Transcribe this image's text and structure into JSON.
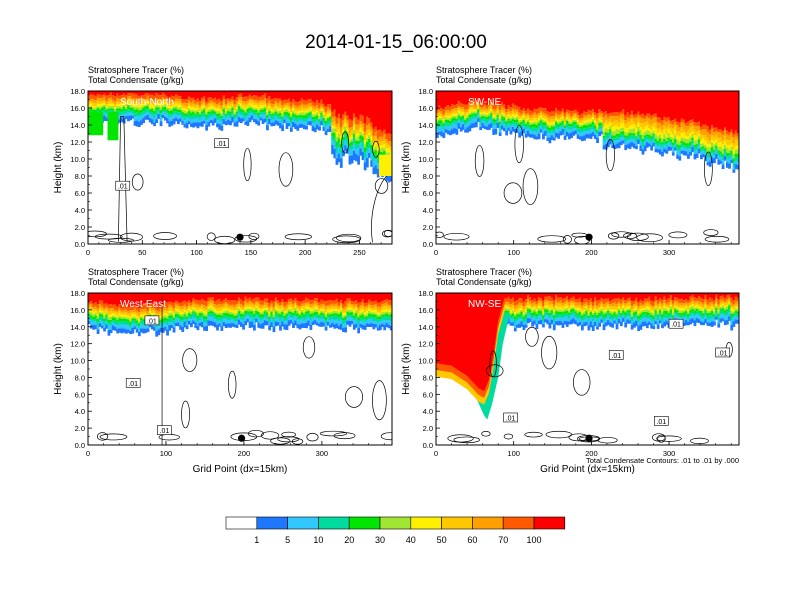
{
  "title": "2014-01-15_06:00:00",
  "chart_data": {
    "type": "heatmap",
    "colorbar": {
      "labels": [
        "1",
        "5",
        "10",
        "20",
        "30",
        "40",
        "50",
        "60",
        "70",
        "100"
      ],
      "colors": [
        "#ffffff",
        "#1e78ff",
        "#32c8ff",
        "#00dca0",
        "#00e600",
        "#a0e632",
        "#fff000",
        "#ffc800",
        "#ffa000",
        "#ff5a00",
        "#ff0000"
      ]
    },
    "contour_note": "Total Condensate Contours: .01 to .01 by .000",
    "contour_label": ".01",
    "panels": [
      {
        "name": "South-North",
        "title_line1": "Stratosphere Tracer   (%)",
        "title_line2": "Total Condensate   (g/kg)",
        "ylabel": "Height (km)",
        "xlabel": "",
        "yticks": [
          "0.0",
          "2.0",
          "4.0",
          "6.0",
          "8.0",
          "10.0",
          "12.0",
          "14.0",
          "16.0",
          "18.0"
        ],
        "xlim": [
          0,
          280
        ],
        "xticks": [
          0,
          50,
          100,
          150,
          200,
          250
        ],
        "marker_x": 140,
        "base_height": [
          16.2,
          16.4,
          16.5,
          16.3,
          15.8,
          15.6,
          15.8,
          16.0,
          15.9,
          15.4,
          15.3,
          14.8,
          14.3,
          13.2
        ],
        "contour_labels": [
          {
            "x": 32,
            "y": 6.8
          },
          {
            "x": 123,
            "y": 11.8
          }
        ]
      },
      {
        "name": "SW-NE",
        "title_line1": "Stratosphere Tracer   (%)",
        "title_line2": "Total Condensate   (g/kg)",
        "ylabel": "Height (km)",
        "xlabel": "",
        "yticks": [
          "0.0",
          "2.0",
          "4.0",
          "6.0",
          "8.0",
          "10.0",
          "12.0",
          "14.0",
          "16.0",
          "18.0"
        ],
        "xlim": [
          0,
          390
        ],
        "xticks": [
          0,
          100,
          200,
          300
        ],
        "marker_x": 197,
        "base_height": [
          14.5,
          15.2,
          15.4,
          15.0,
          14.6,
          14.4,
          14.3,
          14.2,
          14.1,
          14.0,
          13.8,
          13.2,
          12.8,
          12.2,
          11.6
        ],
        "contour_labels": []
      },
      {
        "name": "West-East",
        "title_line1": "Stratosphere Tracer   (%)",
        "title_line2": "Total Condensate   (g/kg)",
        "ylabel": "Height (km)",
        "xlabel": "Grid Point (dx=15km)",
        "yticks": [
          "0.0",
          "2.0",
          "4.0",
          "6.0",
          "8.0",
          "10.0",
          "12.0",
          "14.0",
          "16.0",
          "18.0"
        ],
        "xlim": [
          0,
          390
        ],
        "xticks": [
          0,
          100,
          200,
          300
        ],
        "marker_x": 197,
        "base_height": [
          15.6,
          15.4,
          15.0,
          15.2,
          15.6,
          15.8,
          15.9,
          15.9,
          15.9,
          15.8,
          15.8,
          15.7,
          15.6,
          15.6,
          15.7
        ],
        "contour_labels": [
          {
            "x": 82,
            "y": 14.7
          },
          {
            "x": 58,
            "y": 7.3
          },
          {
            "x": 98,
            "y": 1.7
          }
        ]
      },
      {
        "name": "NW-SE",
        "title_line1": "Stratosphere Tracer   (%)",
        "title_line2": "Total Condensate   (g/kg)",
        "ylabel": "Height (km)",
        "xlabel": "Grid Point (dx=15km)",
        "yticks": [
          "0.0",
          "2.0",
          "4.0",
          "6.0",
          "8.0",
          "10.0",
          "12.0",
          "14.0",
          "16.0",
          "18.0"
        ],
        "xlim": [
          0,
          390
        ],
        "xticks": [
          0,
          100,
          200,
          300
        ],
        "marker_x": 197,
        "base_height": [
          15.6,
          15.4,
          15.6,
          15.8,
          15.9,
          16.0,
          16.0,
          15.9,
          15.8,
          15.8,
          15.9,
          16.0,
          16.1,
          16.0,
          16.0
        ],
        "contour_labels": [
          {
            "x": 232,
            "y": 10.6
          },
          {
            "x": 309,
            "y": 14.3
          },
          {
            "x": 369,
            "y": 10.9
          },
          {
            "x": 290,
            "y": 2.8
          },
          {
            "x": 96,
            "y": 3.2
          }
        ]
      }
    ]
  }
}
